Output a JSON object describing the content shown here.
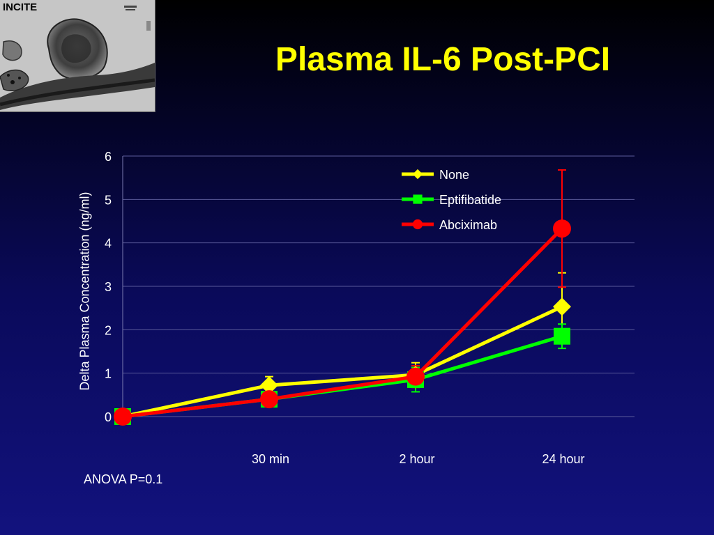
{
  "slide": {
    "logo_text": "INCITE",
    "title": "Plasma IL-6 Post-PCI",
    "note": "ANOVA P=0.1"
  },
  "colors": {
    "title": "#ffff00",
    "text": "#ffffff"
  },
  "chart_data": {
    "type": "line",
    "title": "",
    "ylabel": "Delta Plasma Concentration (ng/ml)",
    "xlabel": "",
    "ylim": [
      0,
      6
    ],
    "yticks": [
      "0",
      "1",
      "2",
      "3",
      "4",
      "5",
      "6"
    ],
    "categories": [
      "",
      "30 min",
      "2 hour",
      "24 hour"
    ],
    "grid": true,
    "legend_position": "top-right",
    "series": [
      {
        "name": "None",
        "color": "#ffff00",
        "marker": "diamond",
        "values": [
          0,
          0.72,
          0.96,
          2.53
        ],
        "error": [
          0,
          0.2,
          0.28,
          0.78
        ]
      },
      {
        "name": "Eptifibatide",
        "color": "#00ff00",
        "marker": "square",
        "values": [
          0,
          0.4,
          0.85,
          1.85
        ],
        "error": [
          0,
          0.12,
          0.28,
          0.28
        ]
      },
      {
        "name": "Abciximab",
        "color": "#ff0000",
        "marker": "circle",
        "values": [
          0,
          0.4,
          0.92,
          4.33
        ],
        "error": [
          0,
          0.1,
          0.25,
          1.35
        ]
      }
    ]
  }
}
